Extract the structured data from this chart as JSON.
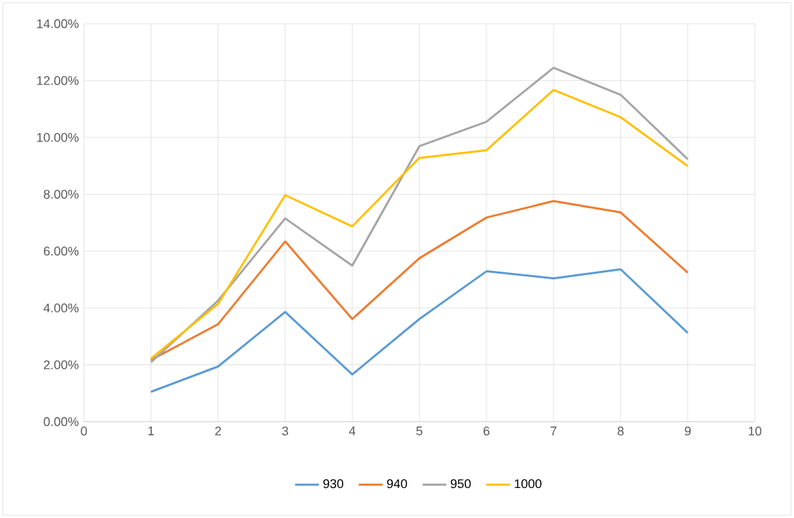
{
  "chart_data": {
    "type": "line",
    "x": [
      1,
      2,
      3,
      4,
      5,
      6,
      7,
      8,
      9
    ],
    "series": [
      {
        "name": "930",
        "color": "#5b9bd5",
        "values": [
          1.05,
          1.94,
          3.86,
          1.66,
          3.61,
          5.29,
          5.04,
          5.36,
          3.12
        ]
      },
      {
        "name": "940",
        "color": "#ed7d31",
        "values": [
          2.17,
          3.43,
          6.34,
          3.61,
          5.75,
          7.18,
          7.76,
          7.36,
          5.24
        ]
      },
      {
        "name": "950",
        "color": "#a5a5a5",
        "values": [
          2.09,
          4.26,
          7.15,
          5.49,
          9.69,
          10.55,
          12.45,
          11.5,
          9.23
        ]
      },
      {
        "name": "1000",
        "color": "#ffc000",
        "values": [
          2.22,
          4.14,
          7.97,
          6.87,
          9.28,
          9.55,
          11.67,
          10.71,
          8.99
        ]
      }
    ],
    "xlim": [
      0,
      10
    ],
    "xticks": [
      0,
      1,
      2,
      3,
      4,
      5,
      6,
      7,
      8,
      9,
      10
    ],
    "ylim": [
      0,
      14
    ],
    "yticks": [
      {
        "value": 0,
        "label": "0.00%"
      },
      {
        "value": 2,
        "label": "2.00%"
      },
      {
        "value": 4,
        "label": "4.00%"
      },
      {
        "value": 6,
        "label": "6.00%"
      },
      {
        "value": 8,
        "label": "8.00%"
      },
      {
        "value": 10,
        "label": "10.00%"
      },
      {
        "value": 12,
        "label": "12.00%"
      },
      {
        "value": 14,
        "label": "14.00%"
      }
    ],
    "grid": true,
    "legend": "bottom",
    "marker": "none",
    "line_style": "solid"
  }
}
